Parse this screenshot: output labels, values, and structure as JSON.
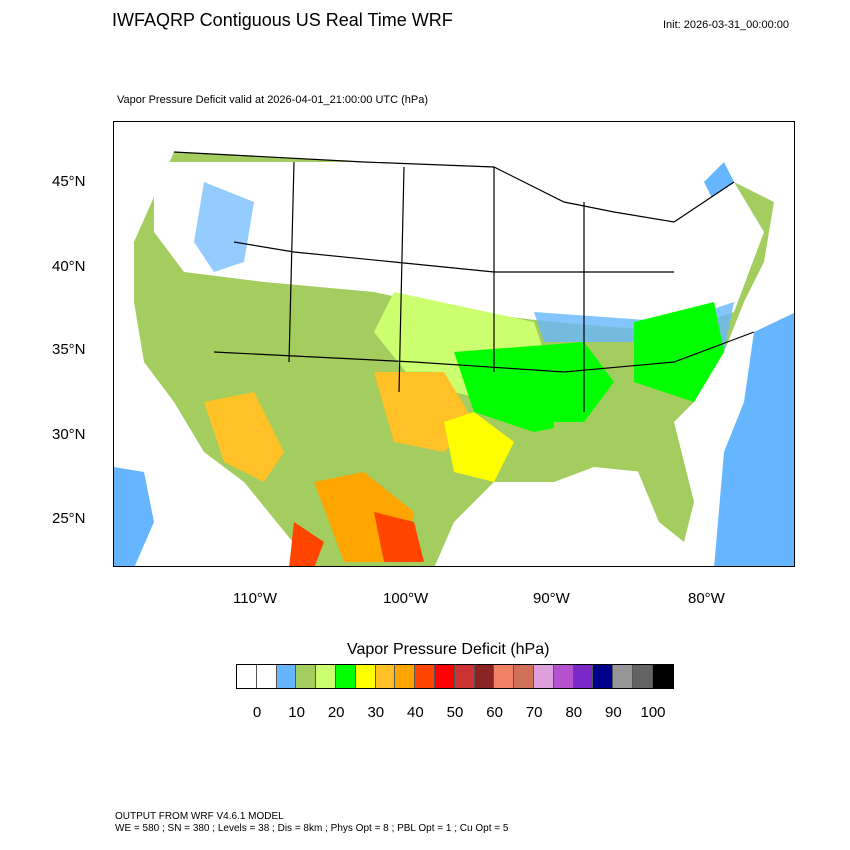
{
  "header": {
    "title": "IWFAQRP Contiguous US Real Time WRF",
    "init": "Init: 2026-03-31_00:00:00",
    "subtitle": "Vapor Pressure Deficit valid at 2026-04-01_21:00:00 UTC   (hPa)"
  },
  "map": {
    "projection": "lambert-conformal",
    "region": "Contiguous US",
    "lat_labels": [
      "45°N",
      "40°N",
      "35°N",
      "30°N",
      "25°N"
    ],
    "lon_labels": [
      "110°W",
      "100°W",
      "90°W",
      "80°W"
    ],
    "ocean_color": "#66b6ff"
  },
  "colorbar": {
    "title": "Vapor Pressure Deficit  (hPa)",
    "labels": [
      "0",
      "10",
      "20",
      "30",
      "40",
      "50",
      "60",
      "70",
      "80",
      "90",
      "100"
    ],
    "colors": [
      "#ffffff",
      "#ffffff",
      "#66b6ff",
      "#a3cd5e",
      "#ccff70",
      "#00ff00",
      "#ffff00",
      "#ffc125",
      "#ffa500",
      "#ff4500",
      "#ff0000",
      "#cd3333",
      "#8b2323",
      "#f08165",
      "#d07058",
      "#dda0dd",
      "#b452cd",
      "#7b28c8",
      "#00008b",
      "#969696",
      "#636363",
      "#000000"
    ]
  },
  "footer": {
    "line1": "OUTPUT FROM WRF V4.6.1 MODEL",
    "line2": "WE = 580 ; SN = 380 ; Levels = 38 ; Dis = 8km ; Phys Opt = 8 ; PBL Opt = 1 ; Cu Opt = 5"
  }
}
